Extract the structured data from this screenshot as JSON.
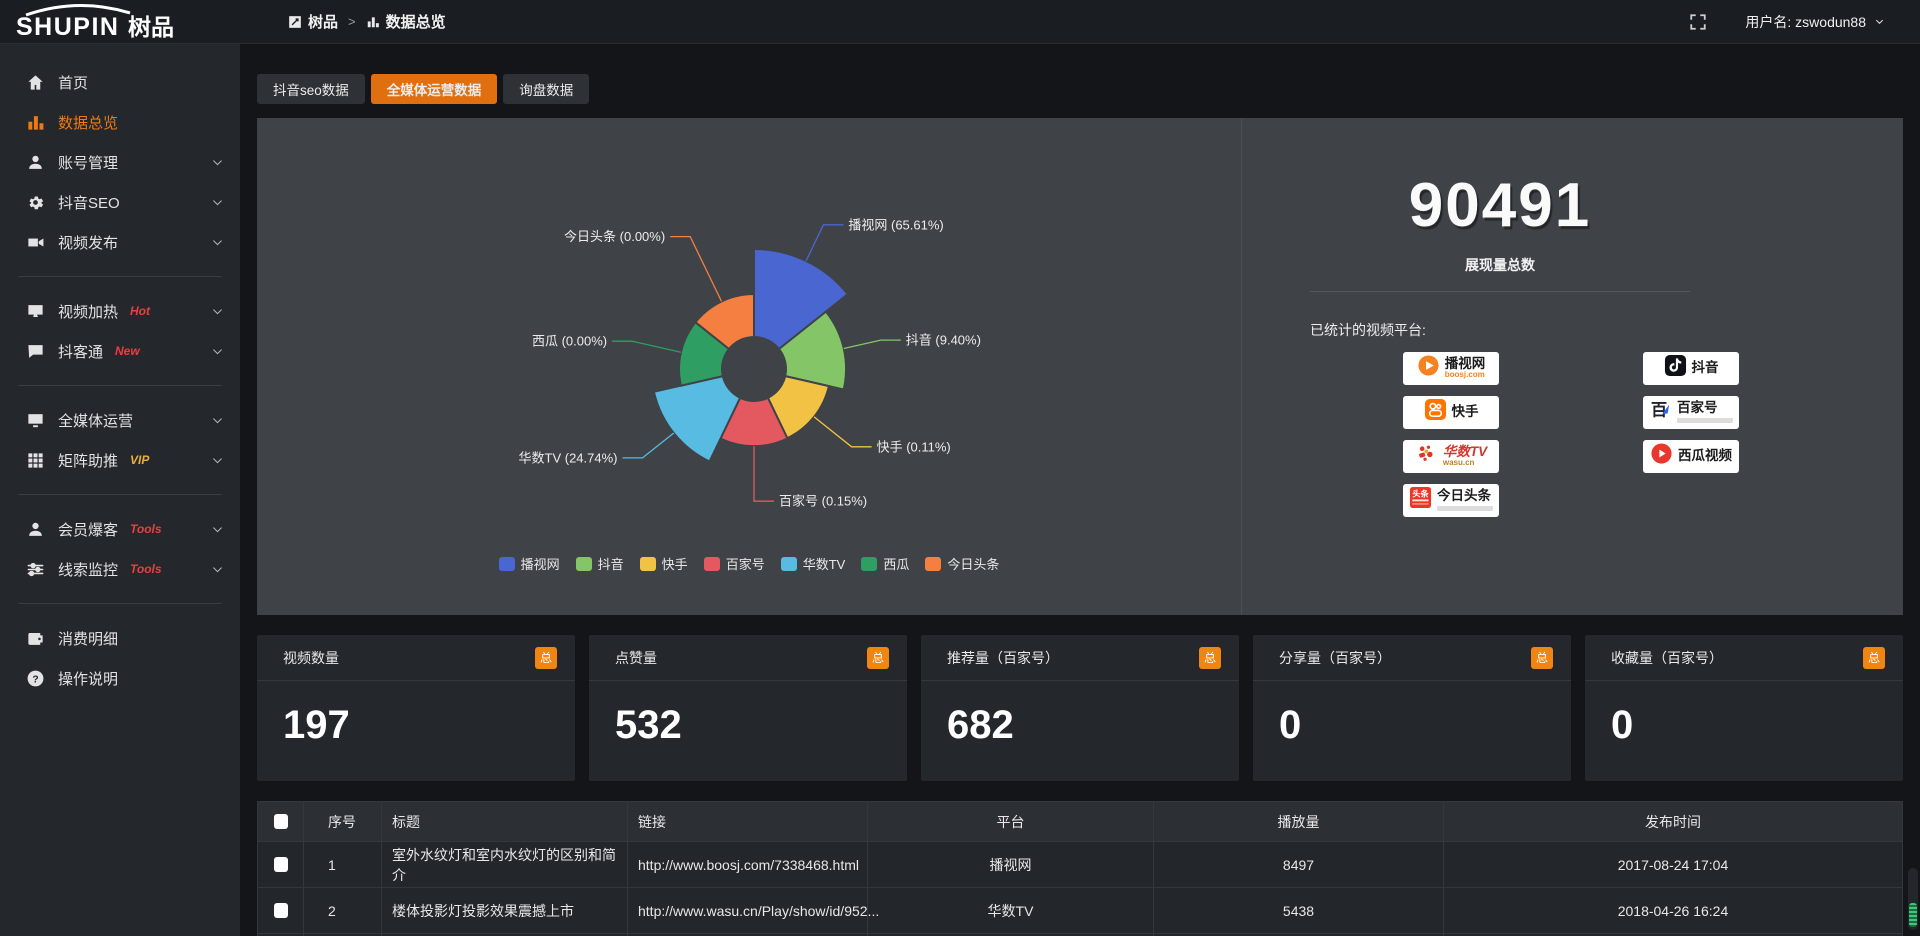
{
  "colors": {
    "accent": "#ee7a14",
    "tab_active": "#e06f10",
    "link": "#e08a3c",
    "hot_tag": "#e84040",
    "vip_tag": "#e8b03c"
  },
  "topbar": {
    "logo_text": "SHUPIN",
    "logo_suffix": "树品",
    "breadcrumb": [
      {
        "label": "树品"
      },
      {
        "label": "数据总览"
      }
    ],
    "username": "用户名: zswodun88"
  },
  "sidebar": {
    "items": [
      {
        "label": "首页",
        "icon": "home"
      },
      {
        "label": "数据总览",
        "icon": "chart",
        "active": true
      },
      {
        "label": "账号管理",
        "icon": "user",
        "expand": true
      },
      {
        "label": "抖音SEO",
        "icon": "gear",
        "expand": true
      },
      {
        "label": "视频发布",
        "icon": "publish",
        "expand": true
      },
      {
        "divider": true
      },
      {
        "label": "视频加热",
        "icon": "heat",
        "tag": "Hot",
        "tag_color": "#e84040",
        "expand": true
      },
      {
        "label": "抖客通",
        "icon": "chat",
        "tag": "New",
        "tag_color": "#e84040",
        "expand": true
      },
      {
        "divider": true
      },
      {
        "label": "全媒体运营",
        "icon": "monitor",
        "expand": true
      },
      {
        "label": "矩阵助推",
        "icon": "grid",
        "tag": "VIP",
        "tag_color": "#e8b03c",
        "expand": true
      },
      {
        "divider": true
      },
      {
        "label": "会员爆客",
        "icon": "member",
        "tag": "Tools",
        "tag_color": "#e84040",
        "expand": true
      },
      {
        "label": "线索监控",
        "icon": "sliders",
        "tag": "Tools",
        "tag_color": "#e84040",
        "expand": true
      },
      {
        "divider": true
      },
      {
        "label": "消费明细",
        "icon": "wallet"
      },
      {
        "label": "操作说明",
        "icon": "question"
      }
    ]
  },
  "tabs": [
    {
      "label": "抖音seo数据",
      "active": false
    },
    {
      "label": "全媒体运营数据",
      "active": true
    },
    {
      "label": "询盘数据",
      "active": false
    }
  ],
  "chart_data": {
    "type": "pie",
    "variant": "nightingale-rose",
    "label_format": "{name} ({value}%)",
    "legend_position": "bottom",
    "items": [
      {
        "name": "播视网",
        "value": 65.61,
        "color": "#4a66d0"
      },
      {
        "name": "抖音",
        "value": 9.4,
        "color": "#84c667"
      },
      {
        "name": "快手",
        "value": 0.11,
        "color": "#f2c244"
      },
      {
        "name": "百家号",
        "value": 0.15,
        "color": "#e45860"
      },
      {
        "name": "华数TV",
        "value": 24.74,
        "color": "#57bbe2"
      },
      {
        "name": "西瓜",
        "value": 0.0,
        "color": "#2f9e63"
      },
      {
        "name": "今日头条",
        "value": 0.0,
        "color": "#f57e41"
      }
    ]
  },
  "summary": {
    "total_value": "90491",
    "total_label": "展现量总数",
    "platforms_title": "已统计的视频平台:",
    "platforms": [
      {
        "name": "播视网",
        "sub": "boosj.com",
        "logo": "boosj"
      },
      {
        "name": "快手",
        "logo": "kuaishou"
      },
      {
        "name": "华数TV",
        "sub": "wasu.cn",
        "logo": "wasu"
      },
      {
        "name": "今日头条",
        "logo": "toutiao"
      },
      {
        "name": "抖音",
        "logo": "douyin"
      },
      {
        "name": "百家号",
        "logo": "baijiahao"
      },
      {
        "name": "西瓜视频",
        "logo": "xigua"
      }
    ]
  },
  "stat_cards": [
    {
      "title": "视频数量",
      "badge": "总",
      "value": "197"
    },
    {
      "title": "点赞量",
      "badge": "总",
      "value": "532"
    },
    {
      "title": "推荐量（百家号）",
      "badge": "总",
      "value": "682"
    },
    {
      "title": "分享量（百家号）",
      "badge": "总",
      "value": "0"
    },
    {
      "title": "收藏量（百家号）",
      "badge": "总",
      "value": "0"
    }
  ],
  "table": {
    "columns": [
      "序号",
      "标题",
      "链接",
      "平台",
      "播放量",
      "发布时间"
    ],
    "rows": [
      {
        "no": "1",
        "title": "室外水纹灯和室内水纹灯的区别和简介",
        "link": "http://www.boosj.com/7338468.html",
        "platform": "播视网",
        "plays": "8497",
        "time": "2017-08-24 17:04"
      },
      {
        "no": "2",
        "title": "楼体投影灯投影效果震撼上市",
        "link": "http://www.wasu.cn/Play/show/id/952...",
        "platform": "华数TV",
        "plays": "5438",
        "time": "2018-04-26 16:24"
      },
      {
        "no": "",
        "title": "",
        "link": "",
        "platform": "",
        "plays": "",
        "time": ""
      }
    ]
  }
}
